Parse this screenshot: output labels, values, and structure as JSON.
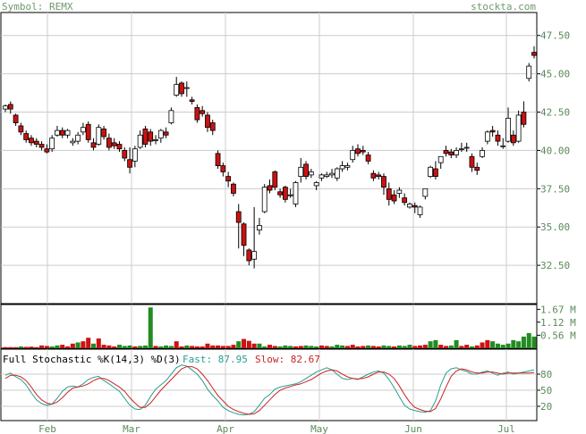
{
  "header": {
    "symbol": "Symbol: REMX",
    "site": "stockta.com"
  },
  "colors": {
    "up_fill": "#ffffff",
    "down_fill": "#cc1111",
    "outline": "#000000",
    "vol_up": "#228b22",
    "vol_down": "#cc1111",
    "fast": "#2a9d8f",
    "slow": "#cc2222",
    "grid": "#cccccc",
    "text": "#5a8a5a"
  },
  "chart_data": [
    {
      "type": "candlestick",
      "title": "REMX",
      "ylim": [
        30.0,
        49.0
      ],
      "y_ticks": [
        "47.50",
        "45.00",
        "42.50",
        "40.00",
        "37.50",
        "35.00",
        "32.50"
      ],
      "x_ticks": [
        "Feb",
        "Mar",
        "Apr",
        "May",
        "Jun",
        "Jul"
      ],
      "grid": true,
      "candles": [
        [
          0,
          42.7,
          43.0,
          42.9,
          42.5
        ],
        [
          1,
          43.0,
          43.2,
          42.7,
          42.4
        ],
        [
          2,
          42.3,
          42.4,
          41.8,
          41.6
        ],
        [
          3,
          41.6,
          41.8,
          41.2,
          41.0
        ],
        [
          4,
          41.1,
          41.3,
          40.7,
          40.5
        ],
        [
          5,
          40.8,
          41.0,
          40.5,
          40.3
        ],
        [
          6,
          40.6,
          40.8,
          40.4,
          40.2
        ],
        [
          7,
          40.4,
          40.6,
          40.2,
          40.0
        ],
        [
          8,
          40.1,
          40.4,
          39.9,
          39.8
        ],
        [
          9,
          40.1,
          41.0,
          40.8,
          39.9
        ],
        [
          10,
          41.0,
          41.6,
          41.3,
          40.9
        ],
        [
          11,
          41.3,
          41.5,
          41.0,
          40.8
        ],
        [
          12,
          41.0,
          41.4,
          41.3,
          40.8
        ],
        [
          13,
          40.5,
          40.8,
          40.6,
          40.3
        ],
        [
          14,
          40.6,
          41.2,
          41.0,
          40.4
        ],
        [
          15,
          41.2,
          41.8,
          41.5,
          41.0
        ],
        [
          16,
          41.7,
          41.9,
          40.7,
          40.5
        ],
        [
          17,
          40.5,
          40.8,
          40.2,
          40.0
        ],
        [
          18,
          40.4,
          41.7,
          41.5,
          40.3
        ],
        [
          19,
          41.4,
          41.6,
          40.9,
          40.7
        ],
        [
          20,
          40.8,
          41.1,
          40.2,
          40.0
        ],
        [
          21,
          40.5,
          40.8,
          40.3,
          40.1
        ],
        [
          22,
          40.4,
          40.6,
          40.1,
          39.9
        ],
        [
          23,
          40.0,
          40.2,
          39.5,
          39.3
        ],
        [
          24,
          39.4,
          40.2,
          38.9,
          38.5
        ],
        [
          25,
          39.3,
          40.3,
          40.1,
          38.9
        ],
        [
          26,
          40.2,
          41.3,
          41.0,
          40.1
        ],
        [
          27,
          41.4,
          41.6,
          40.4,
          40.2
        ],
        [
          28,
          41.2,
          41.4,
          40.6,
          40.3
        ],
        [
          29,
          40.7,
          41.0,
          40.7,
          40.4
        ],
        [
          30,
          40.8,
          41.4,
          41.3,
          40.5
        ],
        [
          31,
          41.2,
          41.5,
          41.0,
          40.8
        ],
        [
          32,
          41.8,
          42.8,
          42.6,
          41.7
        ],
        [
          33,
          43.6,
          44.8,
          44.3,
          43.5
        ],
        [
          34,
          44.4,
          44.5,
          43.7,
          43.5
        ],
        [
          35,
          44.1,
          44.5,
          44.1,
          43.5
        ],
        [
          36,
          43.3,
          43.5,
          43.2,
          43.0
        ],
        [
          37,
          42.8,
          43.0,
          42.0,
          41.8
        ],
        [
          38,
          42.6,
          42.9,
          42.4,
          42.2
        ],
        [
          39,
          42.3,
          42.5,
          41.5,
          41.2
        ],
        [
          40,
          41.8,
          42.0,
          41.3,
          41.0
        ],
        [
          41,
          39.8,
          40.0,
          39.0,
          38.8
        ],
        [
          42,
          39.0,
          39.2,
          38.6,
          38.3
        ],
        [
          43,
          38.3,
          38.6,
          38.0,
          37.6
        ],
        [
          44,
          37.8,
          37.9,
          37.2,
          37.0
        ],
        [
          45,
          36.0,
          36.5,
          35.3,
          33.6
        ],
        [
          46,
          35.2,
          35.3,
          33.8,
          33.1
        ],
        [
          47,
          33.5,
          33.6,
          32.8,
          32.5
        ],
        [
          48,
          32.9,
          36.3,
          33.4,
          32.3
        ],
        [
          49,
          34.8,
          35.6,
          35.1,
          34.5
        ],
        [
          50,
          36.0,
          37.8,
          37.6,
          35.9
        ],
        [
          51,
          37.7,
          38.1,
          37.4,
          37.2
        ],
        [
          52,
          38.6,
          38.7,
          37.6,
          37.4
        ],
        [
          53,
          37.3,
          37.5,
          37.1,
          36.9
        ],
        [
          54,
          37.6,
          37.7,
          36.8,
          36.6
        ],
        [
          55,
          37.1,
          37.5,
          37.1,
          36.9
        ],
        [
          56,
          36.5,
          38.0,
          37.9,
          36.3
        ],
        [
          57,
          38.3,
          39.5,
          38.9,
          37.9
        ],
        [
          58,
          39.1,
          39.3,
          38.3,
          38.1
        ],
        [
          59,
          38.4,
          38.8,
          38.6,
          38.2
        ],
        [
          60,
          37.7,
          38.0,
          37.9,
          37.4
        ],
        [
          61,
          38.2,
          38.5,
          38.4,
          38.0
        ],
        [
          62,
          38.3,
          38.6,
          38.4,
          38.2
        ],
        [
          63,
          38.4,
          38.8,
          38.5,
          38.2
        ],
        [
          64,
          38.2,
          38.9,
          38.8,
          38.0
        ],
        [
          65,
          38.8,
          39.3,
          39.0,
          38.6
        ],
        [
          66,
          38.9,
          39.2,
          39.0,
          38.7
        ],
        [
          67,
          39.4,
          40.3,
          40.0,
          39.2
        ],
        [
          68,
          40.1,
          40.4,
          39.8,
          39.6
        ],
        [
          69,
          40.0,
          40.3,
          39.9,
          39.7
        ],
        [
          70,
          39.7,
          39.9,
          39.3,
          39.1
        ],
        [
          71,
          38.5,
          38.7,
          38.2,
          38.0
        ],
        [
          72,
          38.4,
          38.6,
          38.3,
          38.1
        ],
        [
          73,
          38.3,
          38.5,
          37.6,
          37.1
        ],
        [
          74,
          37.5,
          37.9,
          36.8,
          36.4
        ],
        [
          75,
          37.1,
          37.4,
          36.7,
          36.5
        ],
        [
          76,
          37.2,
          37.6,
          37.4,
          36.9
        ],
        [
          77,
          36.9,
          37.2,
          36.6,
          36.4
        ],
        [
          78,
          36.3,
          36.6,
          36.5,
          36.2
        ],
        [
          79,
          36.4,
          36.6,
          36.3,
          35.9
        ],
        [
          80,
          35.8,
          36.4,
          36.3,
          35.6
        ],
        [
          81,
          37.0,
          37.5,
          37.5,
          36.8
        ],
        [
          82,
          38.3,
          39.0,
          38.9,
          38.2
        ],
        [
          83,
          38.8,
          39.3,
          38.3,
          38.1
        ],
        [
          84,
          39.2,
          39.6,
          39.6,
          38.8
        ],
        [
          85,
          40.0,
          40.3,
          39.8,
          39.6
        ],
        [
          86,
          39.9,
          40.1,
          39.7,
          39.5
        ],
        [
          87,
          39.7,
          40.2,
          40.0,
          39.5
        ],
        [
          88,
          40.1,
          40.5,
          40.1,
          39.9
        ],
        [
          89,
          40.2,
          40.5,
          40.2,
          39.9
        ],
        [
          90,
          39.6,
          39.8,
          38.9,
          38.6
        ],
        [
          91,
          38.9,
          39.2,
          38.7,
          38.4
        ],
        [
          92,
          39.6,
          40.2,
          40.0,
          39.5
        ],
        [
          93,
          40.6,
          41.3,
          41.2,
          40.4
        ],
        [
          94,
          41.3,
          41.6,
          41.2,
          40.9
        ],
        [
          95,
          41.0,
          41.3,
          40.6,
          40.3
        ],
        [
          96,
          40.3,
          40.8,
          40.3,
          40.1
        ],
        [
          97,
          40.6,
          42.8,
          42.1,
          40.5
        ],
        [
          98,
          41.0,
          41.3,
          40.5,
          40.3
        ],
        [
          99,
          40.6,
          42.6,
          42.3,
          40.5
        ],
        [
          100,
          42.5,
          43.2,
          41.7,
          41.5
        ],
        [
          101,
          44.7,
          45.7,
          45.5,
          44.5
        ],
        [
          102,
          46.4,
          46.8,
          46.2,
          46.0
        ]
      ]
    },
    {
      "type": "bar",
      "title": "Volume",
      "ylim": [
        0,
        1.8
      ],
      "y_ticks": [
        "1.67 M",
        "1.12 M",
        "0.56 M"
      ],
      "values": [
        0.05,
        0.05,
        0.05,
        0.08,
        0.06,
        0.07,
        0.05,
        0.12,
        0.1,
        0.08,
        0.12,
        0.15,
        0.08,
        0.2,
        0.25,
        0.3,
        0.45,
        0.2,
        0.42,
        0.15,
        0.12,
        0.08,
        0.15,
        0.1,
        0.12,
        0.08,
        0.1,
        0.12,
        1.75,
        0.1,
        0.08,
        0.12,
        0.1,
        0.3,
        0.08,
        0.12,
        0.1,
        0.08,
        0.08,
        0.2,
        0.12,
        0.12,
        0.1,
        0.1,
        0.15,
        0.3,
        0.4,
        0.32,
        0.2,
        0.2,
        0.08,
        0.15,
        0.1,
        0.08,
        0.12,
        0.1,
        0.08,
        0.1,
        0.12,
        0.1,
        0.08,
        0.12,
        0.1,
        0.08,
        0.15,
        0.12,
        0.1,
        0.15,
        0.08,
        0.1,
        0.12,
        0.1,
        0.08,
        0.12,
        0.1,
        0.08,
        0.12,
        0.1,
        0.15,
        0.1,
        0.12,
        0.15,
        0.3,
        0.35,
        0.15,
        0.1,
        0.12,
        0.35,
        0.1,
        0.15,
        0.08,
        0.12,
        0.25,
        0.35,
        0.3,
        0.2,
        0.15,
        0.2,
        0.35,
        0.3,
        0.5,
        0.65,
        0.5
      ],
      "directions": "ddduddddduuddduddudddduuuduuuduuudduddddddddduddduudduuudduuudduuuddddudduuduuuddduudduuddudddu"
    },
    {
      "type": "line",
      "title": "Full Stochastic %K(14,3) %D(3)",
      "legend": {
        "title": "Full Stochastic %K(14,3) %D(3)",
        "fast_label": "Fast: 87.95",
        "slow_label": "Slow: 82.67"
      },
      "ylim": [
        0,
        100
      ],
      "y_ticks": [
        "80",
        "50",
        "20"
      ],
      "series": [
        {
          "name": "Fast",
          "values": [
            78,
            82,
            75,
            70,
            60,
            45,
            32,
            25,
            22,
            24,
            35,
            48,
            56,
            58,
            56,
            62,
            70,
            74,
            76,
            68,
            62,
            55,
            48,
            35,
            22,
            15,
            14,
            22,
            38,
            52,
            60,
            68,
            80,
            92,
            97,
            95,
            88,
            80,
            68,
            52,
            40,
            30,
            18,
            12,
            8,
            5,
            4,
            5,
            10,
            22,
            35,
            42,
            52,
            56,
            58,
            60,
            62,
            66,
            72,
            78,
            84,
            88,
            92,
            88,
            80,
            72,
            70,
            72,
            70,
            75,
            80,
            84,
            86,
            82,
            70,
            55,
            38,
            22,
            15,
            12,
            10,
            9,
            12,
            30,
            60,
            82,
            90,
            92,
            88,
            85,
            80,
            80,
            84,
            86,
            82,
            78,
            82,
            84,
            80,
            82,
            84,
            86,
            88
          ]
        },
        {
          "name": "Slow",
          "values": [
            72,
            78,
            78,
            75,
            68,
            56,
            42,
            32,
            26,
            24,
            28,
            36,
            46,
            54,
            56,
            58,
            62,
            68,
            72,
            72,
            68,
            62,
            56,
            48,
            36,
            26,
            18,
            18,
            26,
            38,
            50,
            60,
            70,
            80,
            90,
            94,
            94,
            90,
            80,
            68,
            54,
            40,
            30,
            20,
            14,
            10,
            7,
            5,
            6,
            12,
            22,
            32,
            42,
            50,
            54,
            57,
            60,
            62,
            66,
            70,
            76,
            82,
            86,
            88,
            86,
            80,
            75,
            72,
            71,
            72,
            75,
            80,
            84,
            84,
            80,
            72,
            58,
            42,
            28,
            18,
            14,
            11,
            10,
            16,
            34,
            56,
            76,
            86,
            90,
            88,
            84,
            82,
            82,
            84,
            84,
            82,
            80,
            82,
            82,
            82,
            82,
            82,
            83
          ]
        }
      ]
    }
  ]
}
